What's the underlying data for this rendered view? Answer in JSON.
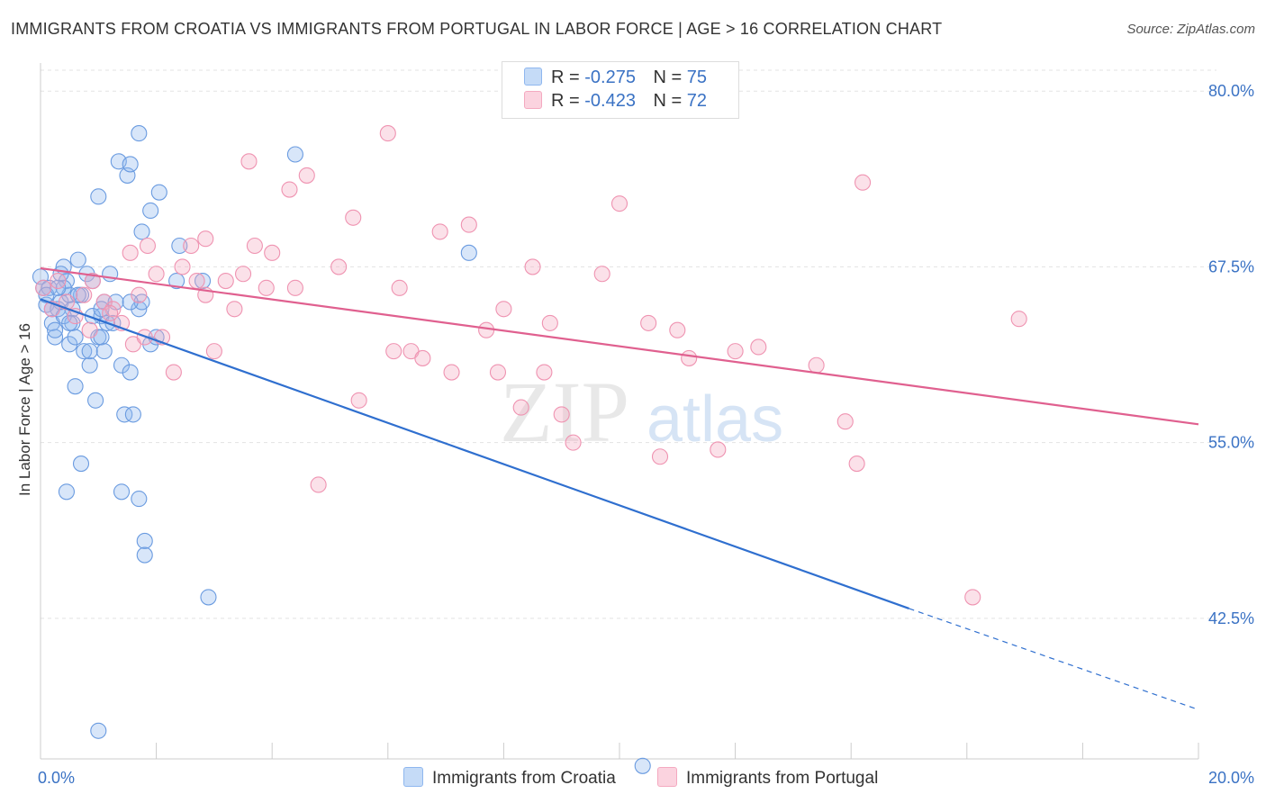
{
  "title": "IMMIGRANTS FROM CROATIA VS IMMIGRANTS FROM PORTUGAL IN LABOR FORCE | AGE > 16 CORRELATION CHART",
  "source": "Source: ZipAtlas.com",
  "watermark": {
    "zip": "ZIP",
    "atlas": "atlas"
  },
  "legend": {
    "r_label": "R =",
    "n_label": "N =",
    "rows": [
      {
        "r": "-0.275",
        "n": "75",
        "color": "#8fb7ef"
      },
      {
        "r": "-0.423",
        "n": "72",
        "color": "#f4a9c0"
      }
    ]
  },
  "colors": {
    "croatia": "#6a9be0",
    "portugal": "#ef93b1",
    "croatia_line": "#2f6fcf",
    "portugal_line": "#e0608f",
    "tick_label": "#3a72c4"
  },
  "chart_data": {
    "type": "scatter",
    "ylabel": "In Labor Force | Age > 16",
    "xlabel": "",
    "xlim": [
      0,
      20
    ],
    "ylim": [
      32.5,
      82
    ],
    "x_tick_labels": [
      {
        "value": 0,
        "label": "0.0%"
      },
      {
        "value": 20,
        "label": "20.0%"
      }
    ],
    "y_ticks": [
      {
        "value": 80,
        "label": "80.0%"
      },
      {
        "value": 67.5,
        "label": "67.5%"
      },
      {
        "value": 55,
        "label": "55.0%"
      },
      {
        "value": 42.5,
        "label": "42.5%"
      }
    ],
    "grid": true,
    "series": [
      {
        "name": "Immigrants from Croatia",
        "trend": {
          "x0": 0,
          "y0": 65.2,
          "x1": 15,
          "y1": 43.2,
          "dash_to_x": 20,
          "dash_to_y": 36.0
        },
        "points": [
          [
            0.0,
            66.8
          ],
          [
            0.05,
            66.0
          ],
          [
            0.1,
            64.8
          ],
          [
            0.15,
            66.0
          ],
          [
            0.2,
            63.5
          ],
          [
            0.25,
            62.5
          ],
          [
            0.3,
            64.5
          ],
          [
            0.35,
            65.0
          ],
          [
            0.4,
            67.5
          ],
          [
            0.45,
            66.5
          ],
          [
            0.5,
            62.0
          ],
          [
            0.55,
            64.5
          ],
          [
            0.6,
            59.0
          ],
          [
            0.65,
            68.0
          ],
          [
            0.7,
            65.5
          ],
          [
            0.75,
            61.5
          ],
          [
            0.8,
            67.0
          ],
          [
            0.85,
            60.5
          ],
          [
            0.9,
            66.5
          ],
          [
            0.95,
            58.0
          ],
          [
            1.0,
            62.5
          ],
          [
            0.7,
            53.5
          ],
          [
            0.45,
            51.5
          ],
          [
            1.05,
            64.0
          ],
          [
            1.1,
            65.0
          ],
          [
            1.15,
            63.5
          ],
          [
            1.2,
            67.0
          ],
          [
            1.25,
            63.5
          ],
          [
            1.3,
            65.0
          ],
          [
            1.4,
            60.5
          ],
          [
            1.45,
            57.0
          ],
          [
            1.55,
            60.0
          ],
          [
            1.35,
            75.0
          ],
          [
            1.5,
            74.0
          ],
          [
            1.55,
            74.8
          ],
          [
            1.05,
            62.5
          ],
          [
            1.1,
            61.5
          ],
          [
            0.9,
            64.0
          ],
          [
            0.85,
            61.5
          ],
          [
            1.6,
            57.0
          ],
          [
            1.7,
            64.5
          ],
          [
            1.75,
            65.0
          ],
          [
            1.8,
            48.0
          ],
          [
            1.9,
            62.0
          ],
          [
            2.0,
            62.5
          ],
          [
            1.7,
            77.0
          ],
          [
            1.75,
            70.0
          ],
          [
            1.8,
            47.0
          ],
          [
            1.9,
            71.5
          ],
          [
            2.05,
            72.8
          ],
          [
            1.05,
            64.5
          ],
          [
            1.4,
            51.5
          ],
          [
            1.55,
            65.0
          ],
          [
            2.4,
            69.0
          ],
          [
            2.35,
            66.5
          ],
          [
            2.8,
            66.5
          ],
          [
            2.9,
            44.0
          ],
          [
            1.0,
            72.5
          ],
          [
            0.55,
            63.5
          ],
          [
            0.5,
            65.5
          ],
          [
            0.25,
            63.0
          ],
          [
            0.4,
            66.0
          ],
          [
            0.6,
            62.5
          ],
          [
            0.35,
            67.0
          ],
          [
            1.7,
            51.0
          ],
          [
            1.0,
            34.5
          ],
          [
            7.4,
            68.5
          ],
          [
            4.4,
            75.5
          ],
          [
            10.4,
            32.0
          ],
          [
            0.1,
            65.5
          ],
          [
            0.2,
            64.5
          ],
          [
            0.3,
            66.0
          ],
          [
            0.4,
            64.0
          ],
          [
            0.5,
            63.5
          ],
          [
            0.65,
            65.5
          ]
        ]
      },
      {
        "name": "Immigrants from Portugal",
        "trend": {
          "x0": 0,
          "y0": 67.4,
          "x1": 20,
          "y1": 56.3
        },
        "points": [
          [
            0.05,
            66.0
          ],
          [
            0.2,
            64.5
          ],
          [
            0.3,
            66.5
          ],
          [
            0.45,
            65.0
          ],
          [
            0.6,
            64.0
          ],
          [
            0.75,
            65.5
          ],
          [
            0.9,
            66.5
          ],
          [
            1.1,
            65.0
          ],
          [
            1.25,
            64.5
          ],
          [
            1.4,
            63.5
          ],
          [
            1.6,
            62.0
          ],
          [
            1.7,
            65.5
          ],
          [
            1.85,
            69.0
          ],
          [
            2.0,
            67.0
          ],
          [
            2.1,
            62.5
          ],
          [
            2.3,
            60.0
          ],
          [
            2.45,
            67.5
          ],
          [
            2.6,
            69.0
          ],
          [
            2.7,
            66.5
          ],
          [
            2.85,
            69.5
          ],
          [
            3.0,
            61.5
          ],
          [
            3.2,
            66.5
          ],
          [
            3.35,
            64.5
          ],
          [
            3.5,
            67.0
          ],
          [
            3.6,
            75.0
          ],
          [
            3.7,
            69.0
          ],
          [
            3.9,
            66.0
          ],
          [
            4.0,
            68.5
          ],
          [
            4.3,
            73.0
          ],
          [
            4.4,
            66.0
          ],
          [
            4.6,
            74.0
          ],
          [
            4.8,
            52.0
          ],
          [
            5.15,
            67.5
          ],
          [
            5.4,
            71.0
          ],
          [
            5.5,
            58.0
          ],
          [
            6.0,
            77.0
          ],
          [
            6.1,
            61.5
          ],
          [
            6.2,
            66.0
          ],
          [
            6.4,
            61.5
          ],
          [
            6.6,
            61.0
          ],
          [
            6.9,
            70.0
          ],
          [
            7.1,
            60.0
          ],
          [
            7.4,
            70.5
          ],
          [
            7.7,
            63.0
          ],
          [
            7.9,
            60.0
          ],
          [
            8.0,
            64.5
          ],
          [
            8.3,
            57.5
          ],
          [
            8.5,
            67.5
          ],
          [
            8.7,
            60.0
          ],
          [
            8.8,
            63.5
          ],
          [
            9.0,
            57.0
          ],
          [
            9.2,
            55.0
          ],
          [
            9.7,
            67.0
          ],
          [
            10.0,
            72.0
          ],
          [
            10.5,
            63.5
          ],
          [
            10.7,
            54.0
          ],
          [
            11.0,
            63.0
          ],
          [
            11.2,
            61.0
          ],
          [
            11.7,
            54.5
          ],
          [
            12.0,
            61.5
          ],
          [
            12.4,
            61.8
          ],
          [
            13.4,
            60.5
          ],
          [
            13.9,
            56.5
          ],
          [
            14.1,
            53.5
          ],
          [
            14.2,
            73.5
          ],
          [
            16.1,
            44.0
          ],
          [
            16.9,
            63.8
          ],
          [
            1.8,
            62.5
          ],
          [
            1.2,
            64.2
          ],
          [
            1.55,
            68.5
          ],
          [
            2.85,
            65.5
          ],
          [
            0.85,
            63.0
          ]
        ]
      }
    ]
  },
  "bottom_legend": [
    "Immigrants from Croatia",
    "Immigrants from Portugal"
  ]
}
